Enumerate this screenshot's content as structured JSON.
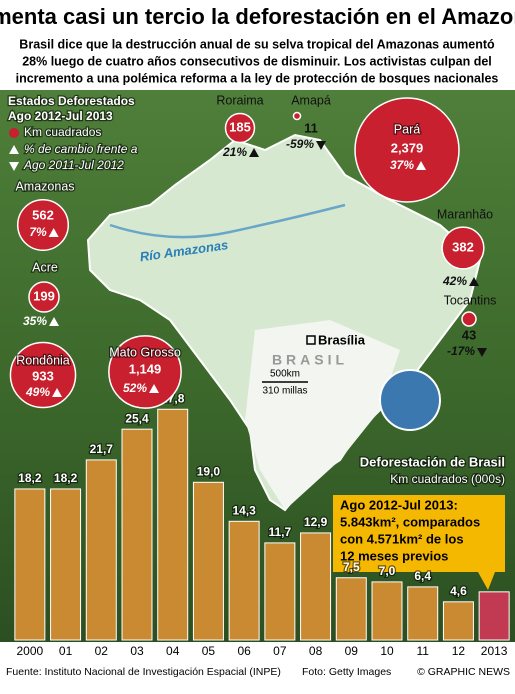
{
  "header": {
    "title": "Aumenta casi un tercio la deforestación en el Amazonas",
    "subtitle": [
      "Brasil dice que la destrucción anual de su selva tropical del Amazonas aumentó",
      "28% luego de cuatro años consecutivos de disminuir. Los activistas culpan del",
      "incremento a una polémica reforma a la ley de protección de bosques nacionales"
    ]
  },
  "map": {
    "legend": {
      "title": "Estados Deforestados",
      "period": "Ago 2012-Jul 2013",
      "unit": "Km cuadrados",
      "change": "% de cambio frente a",
      "previous": "Ago 2011-Jul 2012"
    },
    "states": [
      {
        "name": "Roraima",
        "value": 185,
        "label": "185",
        "change": "21%",
        "direction": "up"
      },
      {
        "name": "Amapá",
        "value": 11,
        "label": "11",
        "change": "-59%",
        "direction": "down"
      },
      {
        "name": "Pará",
        "value": 2379,
        "label": "2,379",
        "change": "37%",
        "direction": "up"
      },
      {
        "name": "Amazonas",
        "value": 562,
        "label": "562",
        "change": "7%",
        "direction": "up"
      },
      {
        "name": "Acre",
        "value": 199,
        "label": "199",
        "change": "35%",
        "direction": "up"
      },
      {
        "name": "Maranhão",
        "value": 382,
        "label": "382",
        "change": "42%",
        "direction": "up"
      },
      {
        "name": "Tocantins",
        "value": 43,
        "label": "43",
        "change": "-17%",
        "direction": "down"
      },
      {
        "name": "Rondônia",
        "value": 933,
        "label": "933",
        "change": "49%",
        "direction": "up"
      },
      {
        "name": "Mato Grosso",
        "value": 1149,
        "label": "1,149",
        "change": "52%",
        "direction": "up"
      }
    ],
    "labels": {
      "river": "Río Amazonas",
      "capital": "Brasília",
      "country": "BRASIL",
      "scale_km": "500km",
      "scale_mi": "310 millas"
    }
  },
  "chart_data": {
    "type": "bar",
    "title": "Deforestación de Brasil",
    "subtitle": "Km cuadrados (000s)",
    "categories": [
      "2000",
      "01",
      "02",
      "03",
      "04",
      "05",
      "06",
      "07",
      "08",
      "09",
      "10",
      "11",
      "12",
      "2013"
    ],
    "values": [
      18.2,
      18.2,
      21.7,
      25.4,
      27.8,
      19.0,
      14.3,
      11.7,
      12.9,
      7.5,
      7.0,
      6.4,
      4.6,
      5.8
    ],
    "value_labels": [
      "18,2",
      "18,2",
      "21,7",
      "25,4",
      "27,8",
      "19,0",
      "14,3",
      "11,7",
      "12,9",
      "7,5",
      "7,0",
      "6,4",
      "4,6",
      null
    ],
    "colors": [
      "#c98a32",
      "#c98a32",
      "#c98a32",
      "#c98a32",
      "#c98a32",
      "#c98a32",
      "#c98a32",
      "#c98a32",
      "#c98a32",
      "#c98a32",
      "#c98a32",
      "#c98a32",
      "#c98a32",
      "#c23a52"
    ],
    "annotation": {
      "title": "Ago 2012-Jul 2013:",
      "lines": [
        "5.843km², comparados",
        "con 4.571km² de los",
        "12 meses previos"
      ]
    }
  },
  "footer": {
    "source": "Fuente: Instituto Nacional de Investigación Espacial (INPE)",
    "photo": "Foto: Getty Images",
    "credit": "© GRAPHIC NEWS"
  }
}
